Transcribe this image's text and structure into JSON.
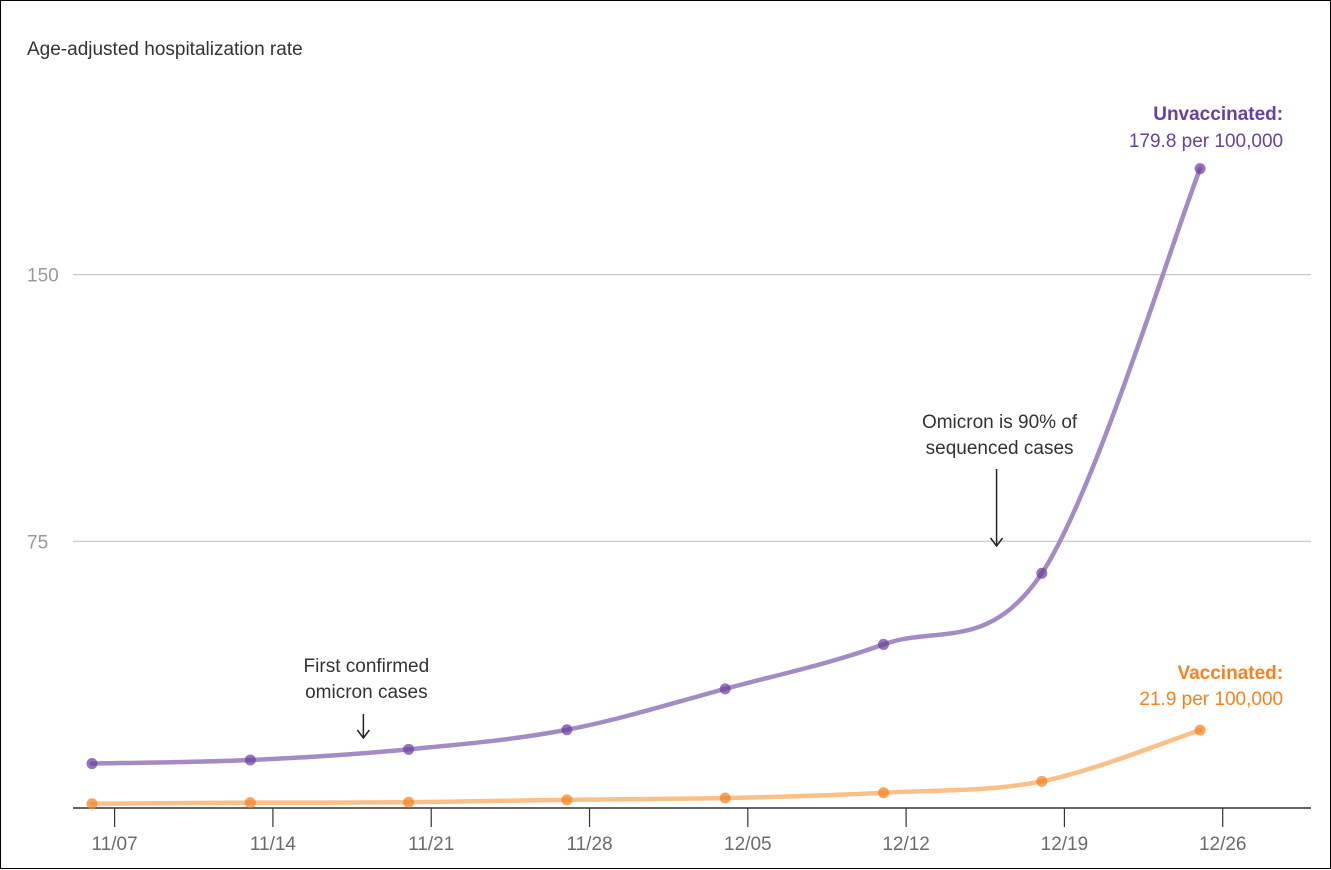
{
  "chart_data": {
    "type": "line",
    "ylabel": "Age-adjusted hospitalization rate",
    "x": [
      "11/06",
      "11/13",
      "11/20",
      "11/27",
      "12/04",
      "12/11",
      "12/18",
      "12/25"
    ],
    "x_ticks": [
      "11/07",
      "11/14",
      "11/21",
      "11/28",
      "12/05",
      "12/12",
      "12/19",
      "12/26"
    ],
    "y_ticks": [
      75,
      150
    ],
    "ylim": [
      0,
      188
    ],
    "grid": true,
    "series": [
      {
        "name": "Unvaccinated",
        "color": "#6b3fa0",
        "line_color": "#a48bc6",
        "values": [
          12.5,
          13.5,
          16.5,
          22,
          33.5,
          46,
          66,
          179.8
        ],
        "label_name": "Unvaccinated:",
        "label_value": "179.8 per 100,000"
      },
      {
        "name": "Vaccinated",
        "color": "#f5821f",
        "line_color": "#fbbf88",
        "values": [
          1.2,
          1.5,
          1.6,
          2.3,
          2.8,
          4.3,
          7.5,
          21.9
        ],
        "label_name": "Vaccinated:",
        "label_value": "21.9 per 100,000"
      }
    ],
    "annotations": [
      {
        "lines": [
          "First confirmed",
          "omicron cases"
        ],
        "x": "11/18"
      },
      {
        "lines": [
          "Omicron is 90% of",
          "sequenced cases"
        ],
        "x": "12/16"
      }
    ]
  }
}
